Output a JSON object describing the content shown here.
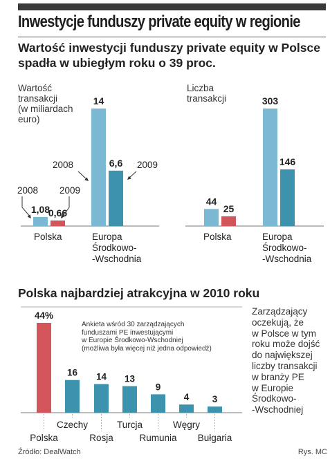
{
  "headline": "Inwestycje funduszy private equity w regionie",
  "subtitle": "Wartość inwestycji funduszy private equity w Polsce spadła w ubiegłym roku o 39 proc.",
  "colors": {
    "light_blue": "#7ab8d3",
    "dark_teal": "#3d92ae",
    "red": "#d2555c",
    "text": "#222222"
  },
  "chart_data": [
    {
      "type": "bar",
      "ylabel": "Wartość\ntransakcji\n(w miliardach\neuro)",
      "categories": [
        "Polska",
        "Europa\nŚrodkowo-\n-Wschodnia"
      ],
      "series": [
        {
          "name": "2008",
          "values": [
            1.08,
            14
          ]
        },
        {
          "name": "2009",
          "values": [
            0.66,
            6.6
          ]
        }
      ],
      "data_labels": [
        [
          "1,08",
          "14"
        ],
        [
          "0,66",
          "6,6"
        ]
      ],
      "ylim": [
        0,
        14
      ]
    },
    {
      "type": "bar",
      "ylabel": "Liczba\ntransakcji",
      "categories": [
        "Polska",
        "Europa\nŚrodkowo-\n-Wschodnia"
      ],
      "series": [
        {
          "values": [
            44,
            303
          ]
        },
        {
          "values": [
            25,
            146
          ]
        }
      ],
      "data_labels": [
        [
          "44",
          "303"
        ],
        [
          "25",
          "146"
        ]
      ],
      "ylim": [
        0,
        303
      ]
    },
    {
      "type": "bar",
      "title": "Polska najbardziej atrakcyjna w 2010 roku",
      "categories": [
        "Polska",
        "Czechy",
        "Rosja",
        "Turcja",
        "Rumunia",
        "Węgry",
        "Bułgaria"
      ],
      "values": [
        44,
        16,
        14,
        13,
        9,
        4,
        3
      ],
      "data_labels": [
        "44%",
        "16",
        "14",
        "13",
        "9",
        "4",
        "3"
      ],
      "ylim": [
        0,
        44
      ]
    }
  ],
  "chart3_note": "Ankieta wśród 30 zarządzających\nfunduszami PE inwestującymi\nw Europie Środkowo-Wschodniej\n(możliwa była więcej niż jedna odpowiedź)",
  "side_note": "Zarządzający\noczekują, że\nw Polsce w tym\nroku może dojść\ndo największej\nliczby transakcji\nw branży PE\nw Europie\nŚrodkowo-\n-Wschodniej",
  "source": "Źródło: DealWatch",
  "credit": "Rys. MC"
}
